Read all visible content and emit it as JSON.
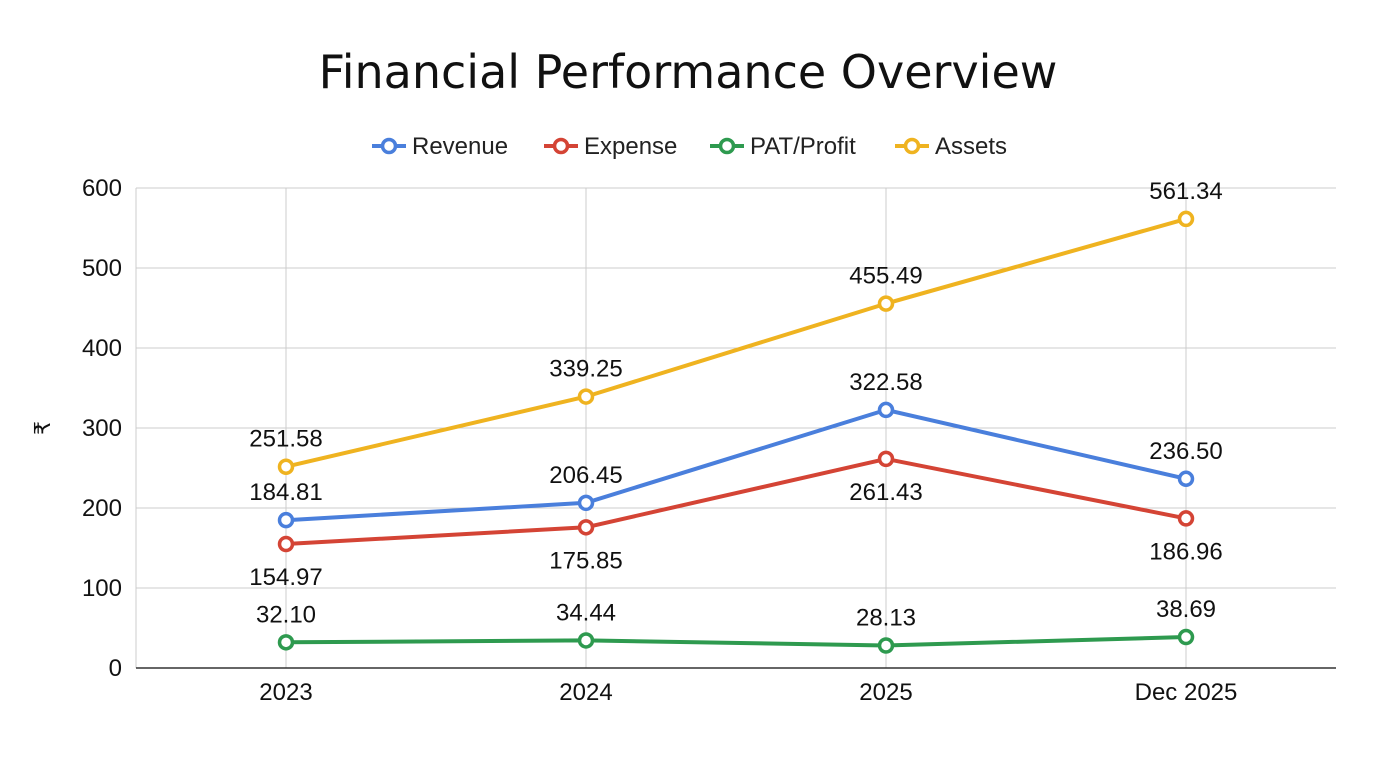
{
  "chart_data": {
    "type": "line",
    "title": "Financial Performance Overview",
    "xlabel": "",
    "ylabel": "₹",
    "categories": [
      "2023",
      "2024",
      "2025",
      "Dec 2025"
    ],
    "ylim": [
      0,
      600
    ],
    "yticks": [
      0,
      100,
      200,
      300,
      400,
      500,
      600
    ],
    "grid": true,
    "legend_position": "top",
    "series": [
      {
        "name": "Revenue",
        "color": "#4a7fdc",
        "values": [
          184.81,
          206.45,
          322.58,
          236.5
        ],
        "labels": [
          "184.81",
          "206.45",
          "322.58",
          "236.50"
        ],
        "label_side": [
          "above",
          "above",
          "above",
          "above"
        ]
      },
      {
        "name": "Expense",
        "color": "#d44435",
        "values": [
          154.97,
          175.85,
          261.43,
          186.96
        ],
        "labels": [
          "154.97",
          "175.85",
          "261.43",
          "186.96"
        ],
        "label_side": [
          "below",
          "below",
          "below",
          "below"
        ]
      },
      {
        "name": "PAT/Profit",
        "color": "#2e9a4f",
        "values": [
          32.1,
          34.44,
          28.13,
          38.69
        ],
        "labels": [
          "32.10",
          "34.44",
          "28.13",
          "38.69"
        ],
        "label_side": [
          "above",
          "above",
          "above",
          "above"
        ]
      },
      {
        "name": "Assets",
        "color": "#efb320",
        "values": [
          251.58,
          339.25,
          455.49,
          561.34
        ],
        "labels": [
          "251.58",
          "339.25",
          "455.49",
          "561.34"
        ],
        "label_side": [
          "above",
          "above",
          "above",
          "above"
        ]
      }
    ]
  }
}
